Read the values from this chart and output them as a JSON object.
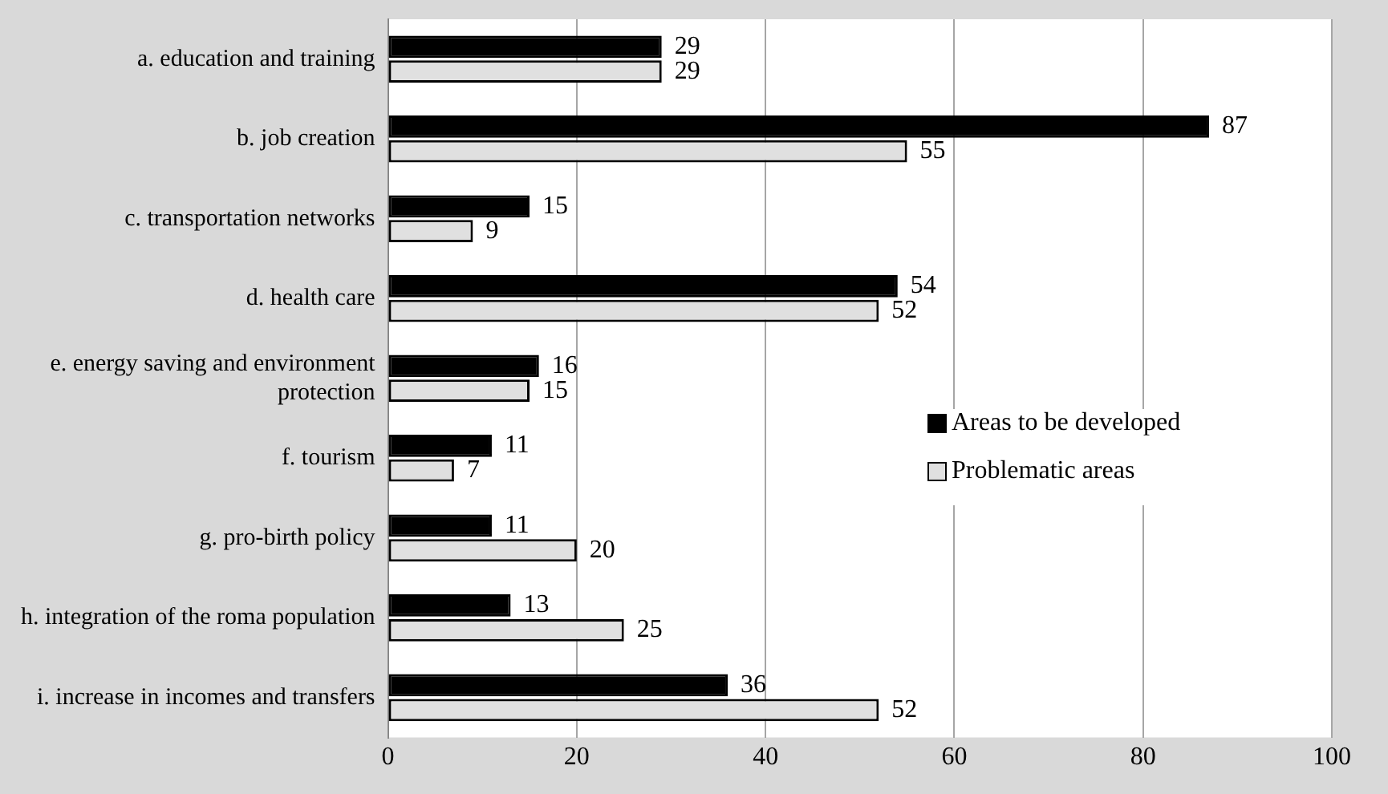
{
  "chart_data": {
    "type": "bar",
    "orientation": "horizontal",
    "categories": [
      "a. education and training",
      "b. job creation",
      "c. transportation networks",
      "d. health care",
      "e. energy saving and environment protection",
      "f. tourism",
      "g. pro-birth policy",
      "h. integration of the roma population",
      "i. increase in incomes and transfers"
    ],
    "series": [
      {
        "name": "Areas to be developed",
        "color": "#000000",
        "values": [
          29,
          87,
          15,
          54,
          16,
          11,
          11,
          13,
          36
        ]
      },
      {
        "name": "Problematic areas",
        "color": "#e0e0e0",
        "values": [
          29,
          55,
          9,
          52,
          15,
          7,
          20,
          25,
          52
        ]
      }
    ],
    "xlim": [
      0,
      100
    ],
    "xticks": [
      0,
      20,
      40,
      60,
      80,
      100
    ],
    "grid": "x",
    "legend": "right",
    "data_labels": true
  }
}
